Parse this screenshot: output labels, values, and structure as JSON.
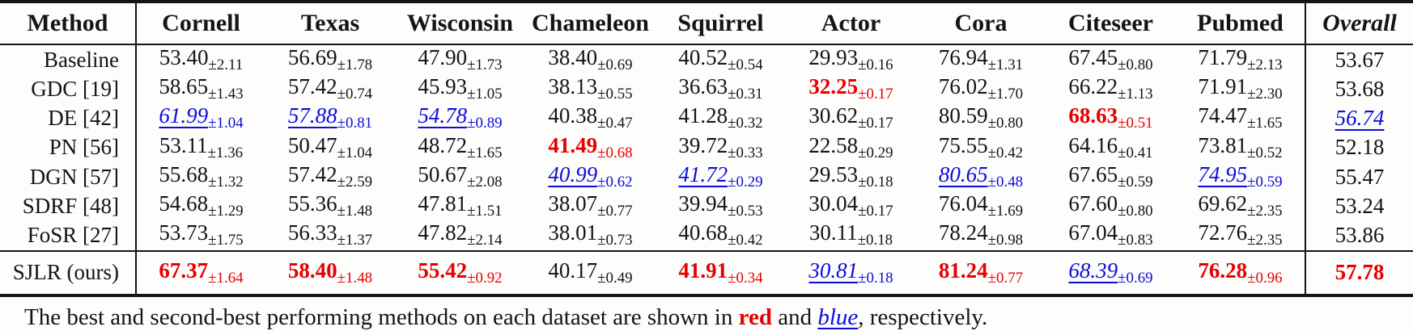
{
  "colors": {
    "best_red": "#e60000",
    "second_blue": "#0b0bdc",
    "rule_ink": "#141414"
  },
  "legend": {
    "best_style": "red bold",
    "second_style": "blue italic underlined"
  },
  "table": {
    "columns": [
      "Method",
      "Cornell",
      "Texas",
      "Wisconsin",
      "Chameleon",
      "Squirrel",
      "Actor",
      "Cora",
      "Citeseer",
      "Pubmed",
      "Overall"
    ],
    "rows": [
      {
        "method": "Baseline",
        "values": [
          {
            "v": "53.40",
            "s": "±2.11",
            "c": "plain"
          },
          {
            "v": "56.69",
            "s": "±1.78",
            "c": "plain"
          },
          {
            "v": "47.90",
            "s": "±1.73",
            "c": "plain"
          },
          {
            "v": "38.40",
            "s": "±0.69",
            "c": "plain"
          },
          {
            "v": "40.52",
            "s": "±0.54",
            "c": "plain"
          },
          {
            "v": "29.93",
            "s": "±0.16",
            "c": "plain"
          },
          {
            "v": "76.94",
            "s": "±1.31",
            "c": "plain"
          },
          {
            "v": "67.45",
            "s": "±0.80",
            "c": "plain"
          },
          {
            "v": "71.79",
            "s": "±2.13",
            "c": "plain"
          }
        ],
        "overall": {
          "v": "53.67",
          "c": "plain"
        }
      },
      {
        "method": "GDC [19]",
        "values": [
          {
            "v": "58.65",
            "s": "±1.43",
            "c": "plain"
          },
          {
            "v": "57.42",
            "s": "±0.74",
            "c": "plain"
          },
          {
            "v": "45.93",
            "s": "±1.05",
            "c": "plain"
          },
          {
            "v": "38.13",
            "s": "±0.55",
            "c": "plain"
          },
          {
            "v": "36.63",
            "s": "±0.31",
            "c": "plain"
          },
          {
            "v": "32.25",
            "s": "±0.17",
            "c": "best"
          },
          {
            "v": "76.02",
            "s": "±1.70",
            "c": "plain"
          },
          {
            "v": "66.22",
            "s": "±1.13",
            "c": "plain"
          },
          {
            "v": "71.91",
            "s": "±2.30",
            "c": "plain"
          }
        ],
        "overall": {
          "v": "53.68",
          "c": "plain"
        }
      },
      {
        "method": "DE [42]",
        "values": [
          {
            "v": "61.99",
            "s": "±1.04",
            "c": "second"
          },
          {
            "v": "57.88",
            "s": "±0.81",
            "c": "second"
          },
          {
            "v": "54.78",
            "s": "±0.89",
            "c": "second"
          },
          {
            "v": "40.38",
            "s": "±0.47",
            "c": "plain"
          },
          {
            "v": "41.28",
            "s": "±0.32",
            "c": "plain"
          },
          {
            "v": "30.62",
            "s": "±0.17",
            "c": "plain"
          },
          {
            "v": "80.59",
            "s": "±0.80",
            "c": "plain"
          },
          {
            "v": "68.63",
            "s": "±0.51",
            "c": "best"
          },
          {
            "v": "74.47",
            "s": "±1.65",
            "c": "plain"
          }
        ],
        "overall": {
          "v": "56.74",
          "c": "second"
        }
      },
      {
        "method": "PN [56]",
        "values": [
          {
            "v": "53.11",
            "s": "±1.36",
            "c": "plain"
          },
          {
            "v": "50.47",
            "s": "±1.04",
            "c": "plain"
          },
          {
            "v": "48.72",
            "s": "±1.65",
            "c": "plain"
          },
          {
            "v": "41.49",
            "s": "±0.68",
            "c": "best"
          },
          {
            "v": "39.72",
            "s": "±0.33",
            "c": "plain"
          },
          {
            "v": "22.58",
            "s": "±0.29",
            "c": "plain"
          },
          {
            "v": "75.55",
            "s": "±0.42",
            "c": "plain"
          },
          {
            "v": "64.16",
            "s": "±0.41",
            "c": "plain"
          },
          {
            "v": "73.81",
            "s": "±0.52",
            "c": "plain"
          }
        ],
        "overall": {
          "v": "52.18",
          "c": "plain"
        }
      },
      {
        "method": "DGN [57]",
        "values": [
          {
            "v": "55.68",
            "s": "±1.32",
            "c": "plain"
          },
          {
            "v": "57.42",
            "s": "±2.59",
            "c": "plain"
          },
          {
            "v": "50.67",
            "s": "±2.08",
            "c": "plain"
          },
          {
            "v": "40.99",
            "s": "±0.62",
            "c": "second"
          },
          {
            "v": "41.72",
            "s": "±0.29",
            "c": "second"
          },
          {
            "v": "29.53",
            "s": "±0.18",
            "c": "plain"
          },
          {
            "v": "80.65",
            "s": "±0.48",
            "c": "second"
          },
          {
            "v": "67.65",
            "s": "±0.59",
            "c": "plain"
          },
          {
            "v": "74.95",
            "s": "±0.59",
            "c": "second"
          }
        ],
        "overall": {
          "v": "55.47",
          "c": "plain"
        }
      },
      {
        "method": "SDRF [48]",
        "values": [
          {
            "v": "54.68",
            "s": "±1.29",
            "c": "plain"
          },
          {
            "v": "55.36",
            "s": "±1.48",
            "c": "plain"
          },
          {
            "v": "47.81",
            "s": "±1.51",
            "c": "plain"
          },
          {
            "v": "38.07",
            "s": "±0.77",
            "c": "plain"
          },
          {
            "v": "39.94",
            "s": "±0.53",
            "c": "plain"
          },
          {
            "v": "30.04",
            "s": "±0.17",
            "c": "plain"
          },
          {
            "v": "76.04",
            "s": "±1.69",
            "c": "plain"
          },
          {
            "v": "67.60",
            "s": "±0.80",
            "c": "plain"
          },
          {
            "v": "69.62",
            "s": "±2.35",
            "c": "plain"
          }
        ],
        "overall": {
          "v": "53.24",
          "c": "plain"
        }
      },
      {
        "method": "FoSR [27]",
        "values": [
          {
            "v": "53.73",
            "s": "±1.75",
            "c": "plain"
          },
          {
            "v": "56.33",
            "s": "±1.37",
            "c": "plain"
          },
          {
            "v": "47.82",
            "s": "±2.14",
            "c": "plain"
          },
          {
            "v": "38.01",
            "s": "±0.73",
            "c": "plain"
          },
          {
            "v": "40.68",
            "s": "±0.42",
            "c": "plain"
          },
          {
            "v": "30.11",
            "s": "±0.18",
            "c": "plain"
          },
          {
            "v": "78.24",
            "s": "±0.98",
            "c": "plain"
          },
          {
            "v": "67.04",
            "s": "±0.83",
            "c": "plain"
          },
          {
            "v": "72.76",
            "s": "±2.35",
            "c": "plain"
          }
        ],
        "overall": {
          "v": "53.86",
          "c": "plain"
        }
      }
    ],
    "ours_row": {
      "method": "SJLR (ours)",
      "values": [
        {
          "v": "67.37",
          "s": "±1.64",
          "c": "best"
        },
        {
          "v": "58.40",
          "s": "±1.48",
          "c": "best"
        },
        {
          "v": "55.42",
          "s": "±0.92",
          "c": "best"
        },
        {
          "v": "40.17",
          "s": "±0.49",
          "c": "plain"
        },
        {
          "v": "41.91",
          "s": "±0.34",
          "c": "best"
        },
        {
          "v": "30.81",
          "s": "±0.18",
          "c": "second"
        },
        {
          "v": "81.24",
          "s": "±0.77",
          "c": "best"
        },
        {
          "v": "68.39",
          "s": "±0.69",
          "c": "second"
        },
        {
          "v": "76.28",
          "s": "±0.96",
          "c": "best"
        }
      ],
      "overall": {
        "v": "57.78",
        "c": "best"
      }
    }
  },
  "caption": {
    "prefix": "The best and second-best performing methods on each dataset are shown in ",
    "red_word": "red",
    "mid": " and ",
    "blue_word": "blue",
    "suffix": ", respectively."
  }
}
